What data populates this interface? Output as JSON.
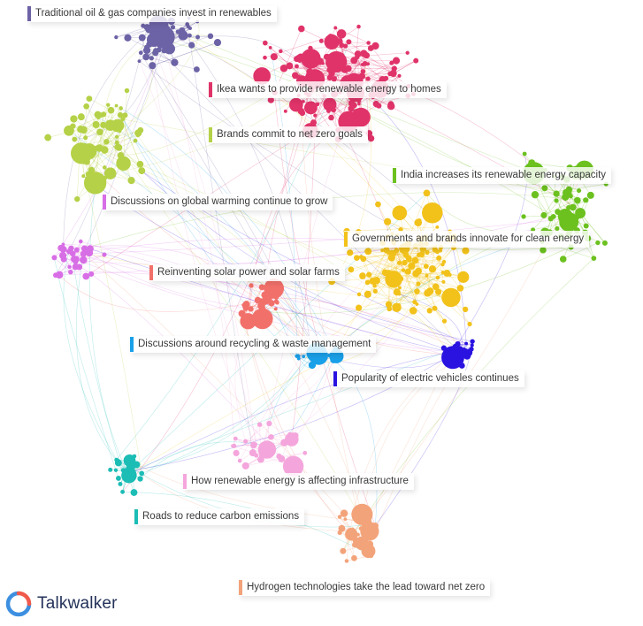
{
  "clusters": [
    {
      "id": "oilgas",
      "label": "Traditional oil & gas companies invest in renewables",
      "color": "#6c63a6"
    },
    {
      "id": "ikea",
      "label": "Ikea wants to provide renewable energy to homes",
      "color": "#e0336a"
    },
    {
      "id": "netzero",
      "label": "Brands commit to net zero goals",
      "color": "#b5d147"
    },
    {
      "id": "india",
      "label": "India increases its renewable energy capacity",
      "color": "#6cc11f"
    },
    {
      "id": "warming",
      "label": "Discussions on global warming continue to grow",
      "color": "#d86ee6"
    },
    {
      "id": "innovate",
      "label": "Governments and brands innovate for clean energy",
      "color": "#f2c21b"
    },
    {
      "id": "solar",
      "label": "Reinventing solar power and solar farms",
      "color": "#f2706a"
    },
    {
      "id": "recycling",
      "label": "Discussions around recycling & waste management",
      "color": "#1aa0e8"
    },
    {
      "id": "ev",
      "label": "Popularity of electric vehicles continues",
      "color": "#2a12e0"
    },
    {
      "id": "infra",
      "label": "How renewable energy is affecting infrastructure",
      "color": "#f4a6dc"
    },
    {
      "id": "roads",
      "label": "Roads to reduce carbon emissions",
      "color": "#1bbdb5"
    },
    {
      "id": "hydrogen",
      "label": "Hydrogen technologies take the lead toward net zero",
      "color": "#f3a37a"
    }
  ],
  "brand": {
    "name": "Talkwalker",
    "logo_icon": "talkwalker-logo-icon",
    "logo_colors": [
      "#f05a4b",
      "#3d8fe0"
    ]
  }
}
